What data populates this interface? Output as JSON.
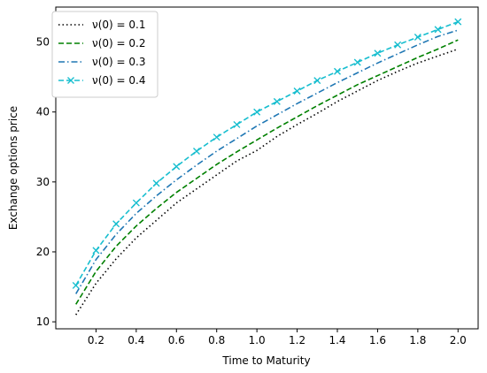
{
  "chart_data": {
    "type": "line",
    "xlabel": "Time to Maturity",
    "ylabel": "Exchange options price",
    "xlim": [
      0.0,
      2.1
    ],
    "ylim": [
      9.0,
      55.0
    ],
    "xticks": [
      "0.2",
      "0.4",
      "0.6",
      "0.8",
      "1.0",
      "1.2",
      "1.4",
      "1.6",
      "1.8",
      "2.0"
    ],
    "yticks": [
      "10",
      "20",
      "30",
      "40",
      "50"
    ],
    "grid": false,
    "legend_position": "top-left",
    "x": [
      0.1,
      0.2,
      0.3,
      0.4,
      0.5,
      0.6,
      0.7,
      0.8,
      0.9,
      1.0,
      1.1,
      1.2,
      1.3,
      1.4,
      1.5,
      1.6,
      1.7,
      1.8,
      1.9,
      2.0
    ],
    "series": [
      {
        "name": "ν(0) = 0.1",
        "color": "#000000",
        "line_style": "dotted",
        "marker": "none",
        "values": [
          11.0,
          15.5,
          19.0,
          22.0,
          24.5,
          27.0,
          29.0,
          31.0,
          33.0,
          34.5,
          36.5,
          38.2,
          39.8,
          41.5,
          43.0,
          44.5,
          45.8,
          47.0,
          48.0,
          49.0
        ]
      },
      {
        "name": "ν(0) = 0.2",
        "color": "#008000",
        "line_style": "dashed",
        "marker": "none",
        "values": [
          12.5,
          17.2,
          20.8,
          23.7,
          26.2,
          28.5,
          30.5,
          32.5,
          34.3,
          36.0,
          37.7,
          39.3,
          40.9,
          42.4,
          43.9,
          45.2,
          46.5,
          47.8,
          49.0,
          50.3
        ]
      },
      {
        "name": "ν(0) = 0.3",
        "color": "#1f77b4",
        "line_style": "dashdot",
        "marker": "none",
        "values": [
          14.0,
          18.9,
          22.5,
          25.5,
          28.0,
          30.3,
          32.4,
          34.4,
          36.2,
          38.0,
          39.6,
          41.2,
          42.7,
          44.2,
          45.6,
          47.0,
          48.3,
          49.6,
          50.8,
          51.7
        ]
      },
      {
        "name": "ν(0) = 0.4",
        "color": "#17becf",
        "line_style": "dashed",
        "marker": "x",
        "values": [
          15.2,
          20.2,
          24.0,
          27.0,
          29.8,
          32.2,
          34.4,
          36.4,
          38.2,
          40.0,
          41.5,
          43.0,
          44.5,
          45.8,
          47.1,
          48.4,
          49.6,
          50.7,
          51.8,
          52.9
        ]
      }
    ]
  }
}
